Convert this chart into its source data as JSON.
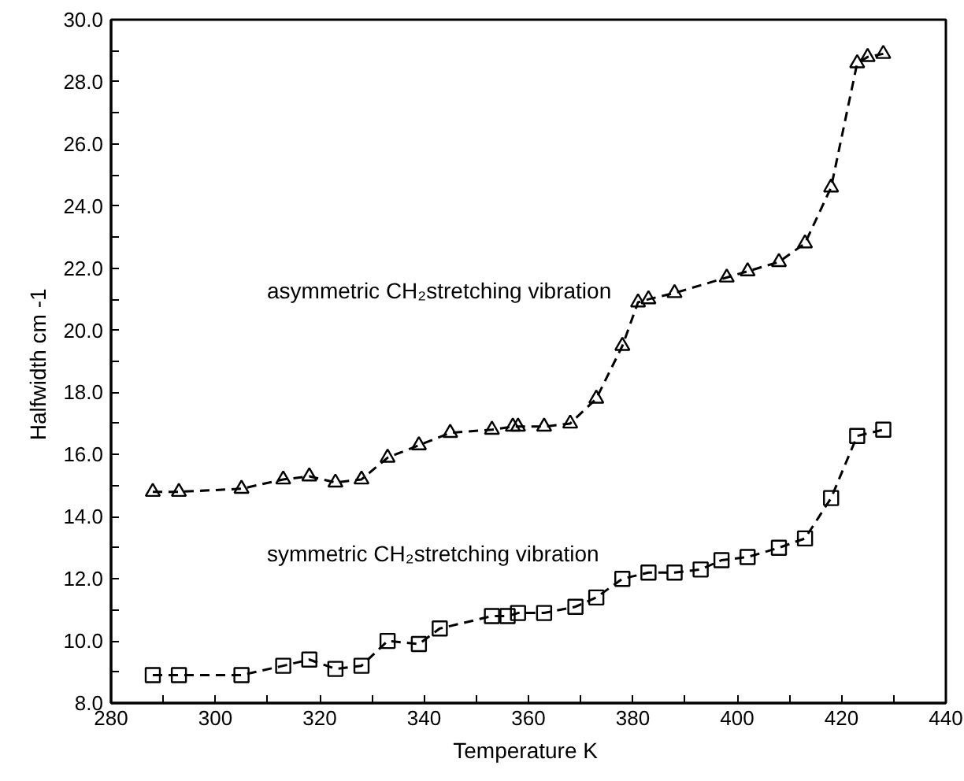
{
  "chart_data": {
    "type": "line",
    "xlabel": "Temperature  K",
    "ylabel": "Halfwidth  cm -1",
    "xlim": [
      280,
      440
    ],
    "ylim": [
      8.0,
      30.0
    ],
    "xticks": [
      280,
      {
        "value": 290,
        "label": null
      },
      300,
      {
        "value": 310,
        "label": null
      },
      320,
      {
        "value": 330,
        "label": null
      },
      340,
      {
        "value": 350,
        "label": null
      },
      360,
      {
        "value": 370,
        "label": null
      },
      380,
      {
        "value": 390,
        "label": null
      },
      400,
      {
        "value": 410,
        "label": null
      },
      420,
      {
        "value": 430,
        "label": null
      },
      440
    ],
    "yticks": [
      {
        "value": 8,
        "label": "8.0"
      },
      {
        "value": 9,
        "label": null
      },
      {
        "value": 10,
        "label": "10.0"
      },
      {
        "value": 11,
        "label": null
      },
      {
        "value": 12,
        "label": "12.0"
      },
      {
        "value": 13,
        "label": null
      },
      {
        "value": 14,
        "label": "14.0"
      },
      {
        "value": 15,
        "label": null
      },
      {
        "value": 16,
        "label": "16.0"
      },
      {
        "value": 17,
        "label": null
      },
      {
        "value": 18,
        "label": "18.0"
      },
      {
        "value": 19,
        "label": null
      },
      {
        "value": 20,
        "label": "20.0"
      },
      {
        "value": 21,
        "label": null
      },
      {
        "value": 22,
        "label": "22.0"
      },
      {
        "value": 23,
        "label": null
      },
      {
        "value": 24,
        "label": "24.0"
      },
      {
        "value": 25,
        "label": null
      },
      {
        "value": 26,
        "label": "26.0"
      },
      {
        "value": 27,
        "label": null
      },
      {
        "value": 28,
        "label": "28.0"
      },
      {
        "value": 29,
        "label": null
      },
      {
        "value": 30,
        "label": "30.0"
      }
    ],
    "grid": false,
    "line_style": "dashed",
    "series": [
      {
        "color": "#000000",
        "marker": "triangle",
        "x": [
          288,
          293,
          305,
          313,
          318,
          323,
          328,
          333,
          339,
          345,
          353,
          357,
          358,
          363,
          368,
          373,
          378,
          381,
          383,
          388,
          398,
          402,
          408,
          413,
          418,
          423,
          425,
          428
        ],
        "values": [
          14.8,
          14.8,
          14.9,
          15.2,
          15.3,
          15.1,
          15.2,
          15.9,
          16.3,
          16.7,
          16.8,
          16.9,
          16.9,
          16.9,
          17.0,
          17.8,
          19.5,
          20.9,
          21.0,
          21.2,
          21.7,
          21.9,
          22.2,
          22.8,
          24.6,
          28.6,
          28.8,
          28.9
        ]
      },
      {
        "color": "#000000",
        "marker": "square",
        "x": [
          288,
          293,
          305,
          313,
          318,
          323,
          328,
          333,
          339,
          343,
          353,
          356,
          358,
          363,
          369,
          373,
          378,
          383,
          388,
          393,
          397,
          402,
          408,
          413,
          418,
          423,
          428
        ],
        "values": [
          8.9,
          8.9,
          8.9,
          9.2,
          9.4,
          9.1,
          9.2,
          10.0,
          9.9,
          10.4,
          10.8,
          10.8,
          10.9,
          10.9,
          11.1,
          11.4,
          12.0,
          12.2,
          12.2,
          12.3,
          12.6,
          12.7,
          13.0,
          13.3,
          14.6,
          16.6,
          16.8
        ]
      }
    ],
    "annotations": [
      "asymmetric CH₂stretching vibration",
      "symmetric CH₂stretching vibration"
    ]
  }
}
